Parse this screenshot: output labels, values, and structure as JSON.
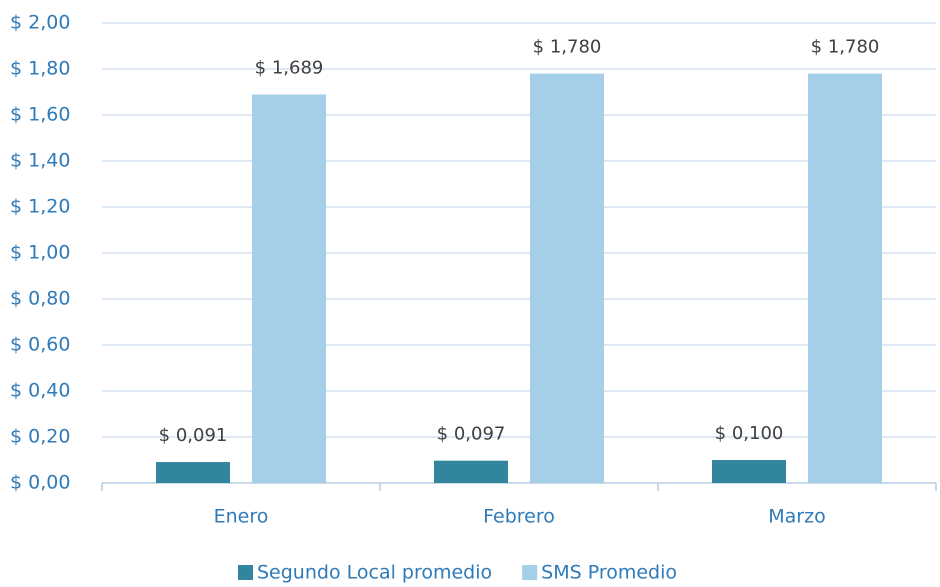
{
  "chart_data": {
    "type": "bar",
    "categories": [
      "Enero",
      "Febrero",
      "Marzo"
    ],
    "series": [
      {
        "name": "Segundo Local promedio",
        "color": "#31859c",
        "values": [
          0.091,
          0.097,
          0.1
        ],
        "value_labels": [
          "$ 0,091",
          "$ 0,097",
          "$ 0,100"
        ]
      },
      {
        "name": "SMS Promedio",
        "color": "#a5cee8",
        "values": [
          1.689,
          1.78,
          1.78
        ],
        "value_labels": [
          "$ 1,689",
          "$ 1,780",
          "$ 1,780"
        ]
      }
    ],
    "ylim": [
      0,
      2
    ],
    "yticks": [
      {
        "value": 0,
        "label": "$ 0,00"
      },
      {
        "value": 0.2,
        "label": "$ 0,20"
      },
      {
        "value": 0.4,
        "label": "$ 0,40"
      },
      {
        "value": 0.6,
        "label": "$ 0,60"
      },
      {
        "value": 0.8,
        "label": "$ 0,80"
      },
      {
        "value": 1.0,
        "label": "$ 1,00"
      },
      {
        "value": 1.2,
        "label": "$ 1,20"
      },
      {
        "value": 1.4,
        "label": "$ 1,40"
      },
      {
        "value": 1.6,
        "label": "$ 1,60"
      },
      {
        "value": 1.8,
        "label": "$ 1,80"
      },
      {
        "value": 2.0,
        "label": "$ 2,00"
      }
    ],
    "grid": true,
    "legend": "bottom"
  }
}
